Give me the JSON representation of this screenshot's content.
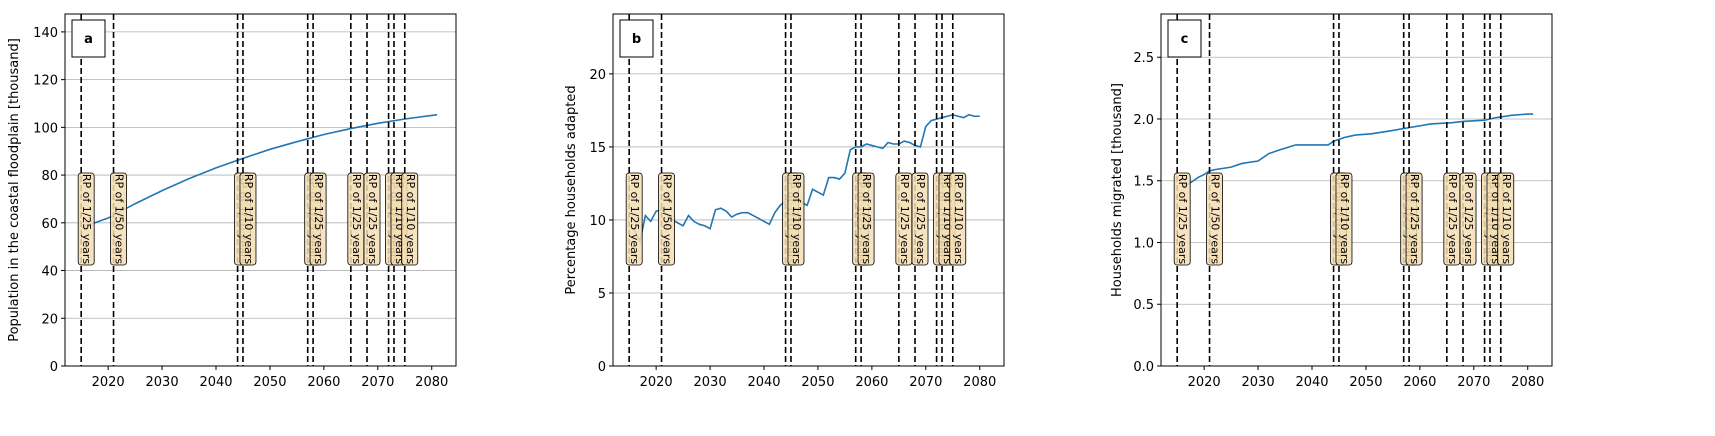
{
  "chart_data": [
    {
      "type": "line",
      "title": "a",
      "y_label": "Population in the coastal floodplain [thousand]",
      "color": "#1f77b4",
      "x": [
        2015,
        2020,
        2025,
        2030,
        2035,
        2040,
        2045,
        2050,
        2055,
        2060,
        2065,
        2070,
        2075,
        2081
      ],
      "values": [
        58,
        62,
        68,
        73.5,
        78.5,
        83,
        87,
        90.8,
        94,
        97,
        99.5,
        101.7,
        103.5,
        105.3
      ],
      "xlim": [
        2012,
        2084.5
      ],
      "ylim": [
        0,
        147.5
      ],
      "xticks": [
        2020,
        2030,
        2040,
        2050,
        2060,
        2070,
        2080
      ],
      "yticks": [
        0,
        20,
        40,
        60,
        80,
        100,
        120,
        140
      ],
      "grid": "y",
      "events": [
        {
          "x": 2015,
          "label": "RP of 1/25 years"
        },
        {
          "x": 2021,
          "label": "RP of 1/50 years"
        },
        {
          "x": 2044,
          "label": "RP of 1/10 years"
        },
        {
          "x": 2045,
          "label": "RP of 1/10 years"
        },
        {
          "x": 2057,
          "label": "RP of 1/25 years"
        },
        {
          "x": 2058,
          "label": "RP of 1/25 years"
        },
        {
          "x": 2065,
          "label": "RP of 1/25 years"
        },
        {
          "x": 2068,
          "label": "RP of 1/25 years"
        },
        {
          "x": 2072,
          "label": "RP of 1/10 years"
        },
        {
          "x": 2073,
          "label": "RP of 1/10 years"
        },
        {
          "x": 2075,
          "label": "RP of 1/10 years"
        }
      ]
    },
    {
      "type": "line",
      "title": "b",
      "y_label": "Percentage households adapted",
      "color": "#1f77b4",
      "x": [
        2016,
        2017,
        2018,
        2019,
        2020,
        2021,
        2022,
        2023,
        2024,
        2025,
        2026,
        2027,
        2028,
        2029,
        2030,
        2031,
        2032,
        2033,
        2034,
        2035,
        2036,
        2037,
        2038,
        2039,
        2040,
        2041,
        2042,
        2043,
        2044,
        2045,
        2046,
        2047,
        2048,
        2049,
        2050,
        2051,
        2052,
        2053,
        2054,
        2055,
        2056,
        2057,
        2058,
        2059,
        2060,
        2061,
        2062,
        2063,
        2064,
        2065,
        2066,
        2067,
        2068,
        2069,
        2070,
        2071,
        2072,
        2073,
        2074,
        2075,
        2076,
        2077,
        2078,
        2079,
        2080
      ],
      "values": [
        9.3,
        8.5,
        10.3,
        9.9,
        10.6,
        10.7,
        10.4,
        10.0,
        9.8,
        9.6,
        10.3,
        9.9,
        9.7,
        9.6,
        9.4,
        10.7,
        10.8,
        10.6,
        10.2,
        10.4,
        10.5,
        10.5,
        10.3,
        10.1,
        9.9,
        9.7,
        10.5,
        11.0,
        11.3,
        11.1,
        11.4,
        11.2,
        11.0,
        12.1,
        11.9,
        11.7,
        12.9,
        12.9,
        12.8,
        13.2,
        14.8,
        15.0,
        15.0,
        15.2,
        15.1,
        15.0,
        14.9,
        15.3,
        15.2,
        15.2,
        15.4,
        15.3,
        15.1,
        15.0,
        16.4,
        16.8,
        16.9,
        17.0,
        17.1,
        17.2,
        17.1,
        17.0,
        17.2,
        17.1,
        17.1
      ],
      "xlim": [
        2012,
        2084.5
      ],
      "ylim": [
        0,
        24.1
      ],
      "xticks": [
        2020,
        2030,
        2040,
        2050,
        2060,
        2070,
        2080
      ],
      "yticks": [
        0,
        5,
        10,
        15,
        20
      ],
      "grid": "y",
      "events": [
        {
          "x": 2015,
          "label": "RP of 1/25 years"
        },
        {
          "x": 2021,
          "label": "RP of 1/50 years"
        },
        {
          "x": 2044,
          "label": "RP of 1/10 years"
        },
        {
          "x": 2045,
          "label": "RP of 1/10 years"
        },
        {
          "x": 2057,
          "label": "RP of 1/25 years"
        },
        {
          "x": 2058,
          "label": "RP of 1/25 years"
        },
        {
          "x": 2065,
          "label": "RP of 1/25 years"
        },
        {
          "x": 2068,
          "label": "RP of 1/25 years"
        },
        {
          "x": 2072,
          "label": "RP of 1/10 years"
        },
        {
          "x": 2073,
          "label": "RP of 1/10 years"
        },
        {
          "x": 2075,
          "label": "RP of 1/10 years"
        }
      ]
    },
    {
      "type": "line",
      "title": "c",
      "y_label": "Households migrated [thousand]",
      "color": "#1f77b4",
      "x": [
        2016,
        2017,
        2018,
        2019,
        2020,
        2021,
        2022,
        2025,
        2027,
        2030,
        2032,
        2034,
        2037,
        2043,
        2044,
        2046,
        2048,
        2051,
        2054,
        2058,
        2062,
        2066,
        2068,
        2072,
        2074,
        2077,
        2080,
        2081
      ],
      "values": [
        1.46,
        1.47,
        1.5,
        1.53,
        1.55,
        1.58,
        1.59,
        1.61,
        1.64,
        1.66,
        1.72,
        1.75,
        1.79,
        1.79,
        1.82,
        1.85,
        1.87,
        1.88,
        1.9,
        1.93,
        1.96,
        1.97,
        1.98,
        1.99,
        2.01,
        2.03,
        2.04,
        2.04
      ],
      "xlim": [
        2012,
        2084.5
      ],
      "ylim": [
        0,
        2.85
      ],
      "xticks": [
        2020,
        2030,
        2040,
        2050,
        2060,
        2070,
        2080
      ],
      "yticks": [
        {
          "value": 0,
          "label": "0.0"
        },
        0.5,
        {
          "value": 1,
          "label": "1.0"
        },
        1.5,
        {
          "value": 2,
          "label": "2.0"
        },
        2.5
      ],
      "grid": "y",
      "events": [
        {
          "x": 2015,
          "label": "RP of 1/25 years"
        },
        {
          "x": 2021,
          "label": "RP of 1/50 years"
        },
        {
          "x": 2044,
          "label": "RP of 1/10 years"
        },
        {
          "x": 2045,
          "label": "RP of 1/10 years"
        },
        {
          "x": 2057,
          "label": "RP of 1/25 years"
        },
        {
          "x": 2058,
          "label": "RP of 1/25 years"
        },
        {
          "x": 2065,
          "label": "RP of 1/25 years"
        },
        {
          "x": 2068,
          "label": "RP of 1/25 years"
        },
        {
          "x": 2072,
          "label": "RP of 1/10 years"
        },
        {
          "x": 2073,
          "label": "RP of 1/10 years"
        },
        {
          "x": 2075,
          "label": "RP of 1/10 years"
        }
      ]
    }
  ]
}
